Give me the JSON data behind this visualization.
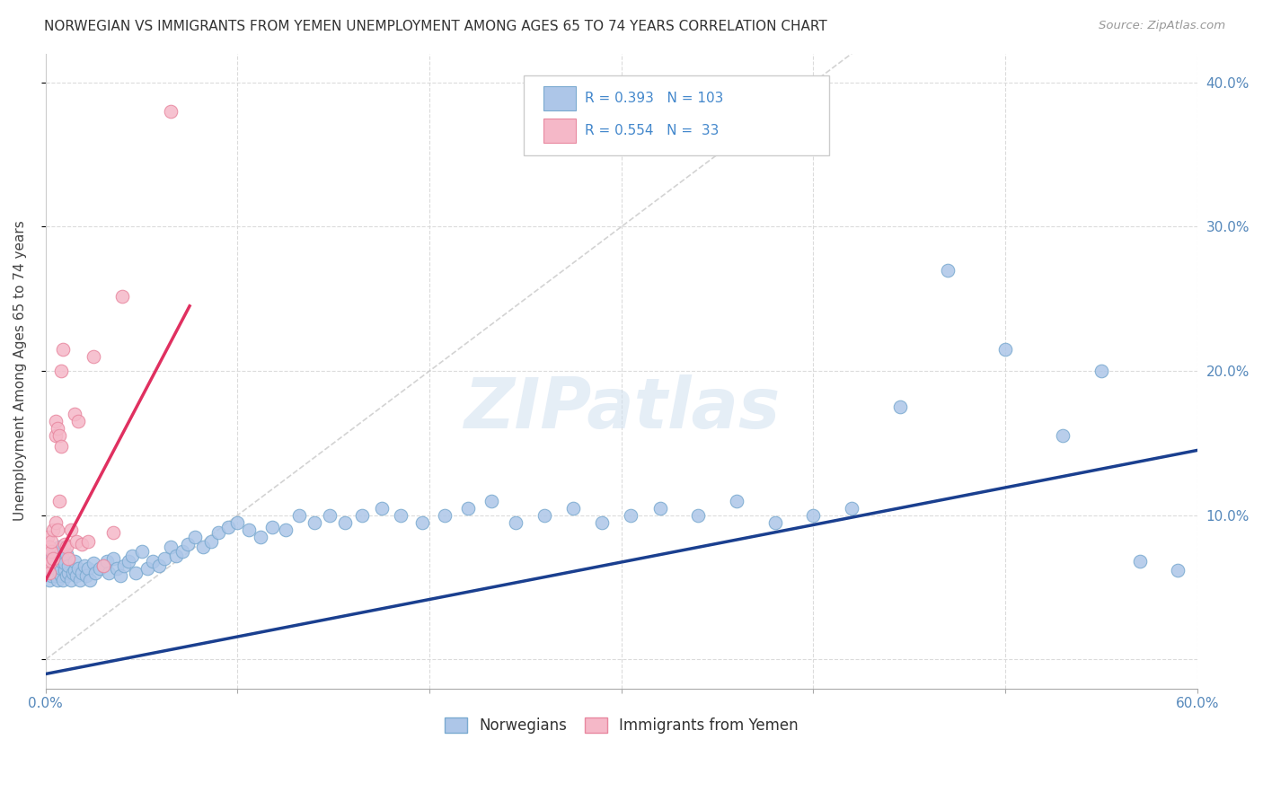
{
  "title": "NORWEGIAN VS IMMIGRANTS FROM YEMEN UNEMPLOYMENT AMONG AGES 65 TO 74 YEARS CORRELATION CHART",
  "source": "Source: ZipAtlas.com",
  "ylabel": "Unemployment Among Ages 65 to 74 years",
  "watermark": "ZIPatlas",
  "xlim": [
    0.0,
    0.6
  ],
  "ylim": [
    -0.02,
    0.42
  ],
  "xtick_positions": [
    0.0,
    0.1,
    0.2,
    0.3,
    0.4,
    0.5,
    0.6
  ],
  "xtick_labels_show": [
    "0.0%",
    "",
    "",
    "",
    "",
    "",
    "60.0%"
  ],
  "ytick_positions": [
    0.0,
    0.1,
    0.2,
    0.3,
    0.4
  ],
  "ytick_labels_right": [
    "",
    "10.0%",
    "20.0%",
    "30.0%",
    "40.0%"
  ],
  "norwegian_color": "#adc6e8",
  "norwegian_edge": "#7aaad0",
  "yemen_color": "#f5b8c8",
  "yemen_edge": "#e888a0",
  "trendline_nor_color": "#1a3f8f",
  "trendline_yem_color": "#e03060",
  "diagonal_color": "#c8c8c8",
  "grid_color": "#d8d8d8",
  "legend_R_nor": "0.393",
  "legend_N_nor": "103",
  "legend_R_yem": "0.554",
  "legend_N_yem": "33",
  "nor_trendline_x": [
    0.0,
    0.6
  ],
  "nor_trendline_y": [
    -0.01,
    0.145
  ],
  "yem_trendline_x": [
    0.0,
    0.075
  ],
  "yem_trendline_y": [
    0.055,
    0.245
  ],
  "norwegian_x": [
    0.001,
    0.002,
    0.002,
    0.003,
    0.003,
    0.003,
    0.004,
    0.004,
    0.004,
    0.005,
    0.005,
    0.005,
    0.005,
    0.006,
    0.006,
    0.006,
    0.007,
    0.007,
    0.007,
    0.008,
    0.008,
    0.008,
    0.009,
    0.009,
    0.01,
    0.01,
    0.011,
    0.011,
    0.012,
    0.012,
    0.013,
    0.014,
    0.015,
    0.015,
    0.016,
    0.017,
    0.018,
    0.019,
    0.02,
    0.021,
    0.022,
    0.023,
    0.025,
    0.026,
    0.028,
    0.03,
    0.032,
    0.033,
    0.035,
    0.037,
    0.039,
    0.041,
    0.043,
    0.045,
    0.047,
    0.05,
    0.053,
    0.056,
    0.059,
    0.062,
    0.065,
    0.068,
    0.071,
    0.074,
    0.078,
    0.082,
    0.086,
    0.09,
    0.095,
    0.1,
    0.106,
    0.112,
    0.118,
    0.125,
    0.132,
    0.14,
    0.148,
    0.156,
    0.165,
    0.175,
    0.185,
    0.196,
    0.208,
    0.22,
    0.232,
    0.245,
    0.26,
    0.275,
    0.29,
    0.305,
    0.32,
    0.34,
    0.36,
    0.38,
    0.4,
    0.42,
    0.445,
    0.47,
    0.5,
    0.53,
    0.55,
    0.57,
    0.59
  ],
  "norwegian_y": [
    0.06,
    0.055,
    0.07,
    0.058,
    0.065,
    0.072,
    0.06,
    0.068,
    0.075,
    0.062,
    0.058,
    0.07,
    0.063,
    0.067,
    0.055,
    0.073,
    0.06,
    0.065,
    0.078,
    0.058,
    0.063,
    0.068,
    0.055,
    0.07,
    0.062,
    0.067,
    0.058,
    0.073,
    0.06,
    0.065,
    0.055,
    0.06,
    0.062,
    0.068,
    0.058,
    0.063,
    0.055,
    0.06,
    0.065,
    0.058,
    0.063,
    0.055,
    0.067,
    0.06,
    0.063,
    0.065,
    0.068,
    0.06,
    0.07,
    0.063,
    0.058,
    0.065,
    0.068,
    0.072,
    0.06,
    0.075,
    0.063,
    0.068,
    0.065,
    0.07,
    0.078,
    0.072,
    0.075,
    0.08,
    0.085,
    0.078,
    0.082,
    0.088,
    0.092,
    0.095,
    0.09,
    0.085,
    0.092,
    0.09,
    0.1,
    0.095,
    0.1,
    0.095,
    0.1,
    0.105,
    0.1,
    0.095,
    0.1,
    0.105,
    0.11,
    0.095,
    0.1,
    0.105,
    0.095,
    0.1,
    0.105,
    0.1,
    0.11,
    0.095,
    0.1,
    0.105,
    0.175,
    0.27,
    0.215,
    0.155,
    0.2,
    0.068,
    0.062
  ],
  "yemen_x": [
    0.001,
    0.001,
    0.002,
    0.002,
    0.003,
    0.003,
    0.003,
    0.004,
    0.004,
    0.005,
    0.005,
    0.005,
    0.006,
    0.006,
    0.007,
    0.007,
    0.008,
    0.008,
    0.009,
    0.01,
    0.011,
    0.012,
    0.013,
    0.015,
    0.016,
    0.017,
    0.019,
    0.022,
    0.025,
    0.03,
    0.035,
    0.04,
    0.065
  ],
  "yemen_y": [
    0.065,
    0.085,
    0.06,
    0.078,
    0.068,
    0.075,
    0.082,
    0.09,
    0.07,
    0.095,
    0.155,
    0.165,
    0.16,
    0.09,
    0.155,
    0.11,
    0.148,
    0.2,
    0.215,
    0.08,
    0.078,
    0.07,
    0.09,
    0.17,
    0.082,
    0.165,
    0.08,
    0.082,
    0.21,
    0.065,
    0.088,
    0.252,
    0.38
  ]
}
